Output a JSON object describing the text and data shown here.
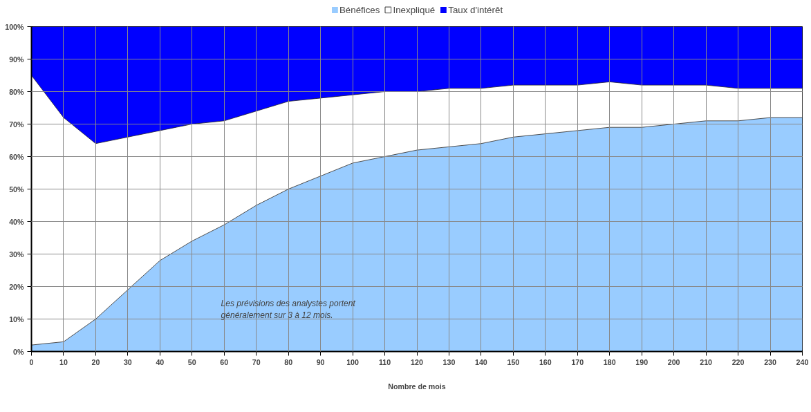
{
  "chart_data": {
    "type": "area",
    "stacked": true,
    "xlabel": "Nombre de mois",
    "x": [
      0,
      10,
      20,
      30,
      40,
      50,
      60,
      70,
      80,
      90,
      100,
      110,
      120,
      130,
      140,
      150,
      160,
      170,
      180,
      190,
      200,
      210,
      220,
      230,
      240
    ],
    "series": [
      {
        "name": "Bénéfices",
        "color": "#99ccff",
        "values": [
          2,
          3,
          10,
          19,
          28,
          34,
          39,
          45,
          50,
          54,
          58,
          60,
          62,
          63,
          64,
          66,
          67,
          68,
          69,
          69,
          70,
          71,
          71,
          72,
          72
        ]
      },
      {
        "name": "Inexpliqué",
        "color": "#ffffff",
        "values": [
          83,
          69,
          54,
          47,
          40,
          36,
          32,
          29,
          27,
          24,
          21,
          20,
          18,
          18,
          17,
          16,
          15,
          14,
          14,
          13,
          12,
          11,
          10,
          9,
          9
        ]
      },
      {
        "name": "Taux d'intérêt",
        "color": "#0000ff",
        "values": [
          15,
          28,
          36,
          34,
          32,
          30,
          29,
          26,
          23,
          22,
          21,
          20,
          20,
          19,
          19,
          18,
          18,
          18,
          17,
          18,
          18,
          18,
          19,
          19,
          19
        ]
      }
    ],
    "xlim": [
      0,
      240
    ],
    "xticks": [
      0,
      10,
      20,
      30,
      40,
      50,
      60,
      70,
      80,
      90,
      100,
      110,
      120,
      130,
      140,
      150,
      160,
      170,
      180,
      190,
      200,
      210,
      220,
      230,
      240
    ],
    "ylim": [
      0,
      100
    ],
    "yticks": [
      {
        "value": 0,
        "label": "0%"
      },
      {
        "value": 10,
        "label": "10%"
      },
      {
        "value": 20,
        "label": "20%"
      },
      {
        "value": 30,
        "label": "30%"
      },
      {
        "value": 40,
        "label": "40%"
      },
      {
        "value": 50,
        "label": "50%"
      },
      {
        "value": 60,
        "label": "60%"
      },
      {
        "value": 70,
        "label": "70%"
      },
      {
        "value": 80,
        "label": "80%"
      },
      {
        "value": 90,
        "label": "90%"
      },
      {
        "value": 100,
        "label": "100%"
      }
    ],
    "grid": true,
    "legend": "top",
    "annotations": [
      "Les prévisions des analystes portent\ngénéralement sur 3 à 12 mois."
    ]
  }
}
